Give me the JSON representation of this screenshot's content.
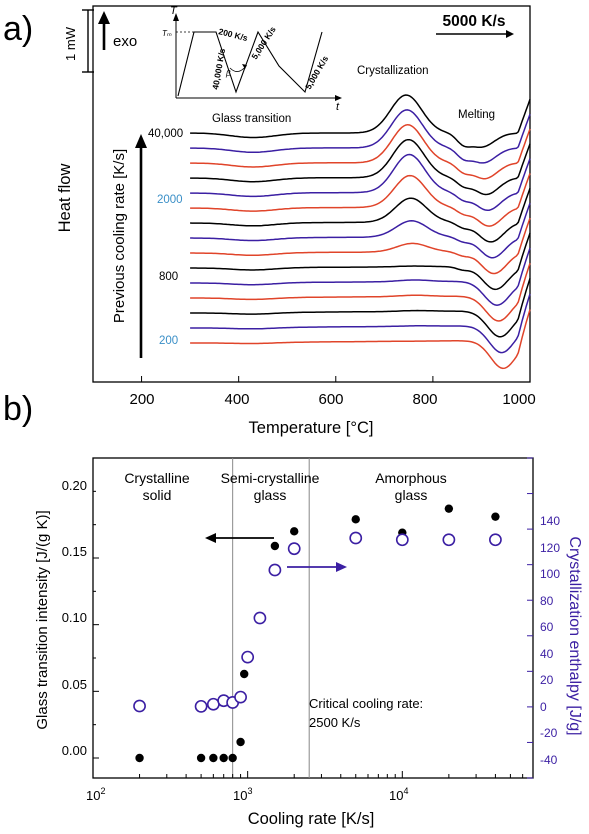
{
  "panel_a": {
    "label": "a)",
    "ylabel": "Heat flow",
    "xlabel": "Temperature [°C]",
    "xticks": [
      "200",
      "400",
      "600",
      "800",
      "1000"
    ],
    "scale_bar": "1 mW",
    "exo": "exo",
    "rate_label": "5000 K/s",
    "arrow_label": "Previous cooling rate [K/s]",
    "glass_transition": "Glass transition",
    "crystallization": "Crystallization",
    "melting": "Melting",
    "rate_labels": [
      {
        "text": "40,000",
        "color": "#000000"
      },
      {
        "text": "2000",
        "color": "#3a8fc7"
      },
      {
        "text": "800",
        "color": "#000000"
      },
      {
        "text": "200",
        "color": "#3a8fc7"
      }
    ],
    "inset": {
      "T": "T",
      "Tm": "Tₘ",
      "t": "t",
      "r1": "200 K/s",
      "r2": "40,000 K/s",
      "r3": "5,000 K/s",
      "r4": "5,000 K/s",
      "beta": "β"
    },
    "series_colors": [
      "#000000",
      "#3b1fa3",
      "#e0442a"
    ]
  },
  "panel_b": {
    "label": "b)",
    "regions": [
      "Crystalline",
      "solid",
      "Semi-crystalline",
      "glass",
      "Amorphous",
      "glass"
    ],
    "critical": [
      "Critical cooling rate:",
      "2500 K/s"
    ],
    "xlabel": "Cooling rate [K/s]",
    "ylabel_left": "Glass transition intensity [J/(g K)]",
    "ylabel_right": "Crystallization enthalpy [J/g]",
    "xtick_base": "10",
    "xtick_exps": [
      "2",
      "3",
      "4"
    ],
    "yticks_left": [
      "0.00",
      "0.05",
      "0.10",
      "0.15",
      "0.20"
    ],
    "yticks_right": [
      "-40",
      "-20",
      "0",
      "20",
      "40",
      "60",
      "80",
      "100",
      "120",
      "140"
    ]
  },
  "chart_data": [
    {
      "type": "line",
      "title": "",
      "xlabel": "Temperature [°C]",
      "ylabel": "Heat flow",
      "xlim": [
        100,
        1000
      ],
      "note": "Stacked DSC traces, offset vertically, for previous cooling rates from 200 to 40,000 K/s",
      "series_count": 15
    },
    {
      "type": "scatter",
      "xscale": "log",
      "xlabel": "Cooling rate [K/s]",
      "xlim": [
        100,
        70000
      ],
      "ylim_left": [
        -0.015,
        0.225
      ],
      "ylim_right": [
        -40,
        140
      ],
      "series": [
        {
          "name": "Glass transition intensity",
          "axis": "left",
          "marker": "filled",
          "color": "#000000",
          "x": [
            200,
            500,
            600,
            700,
            800,
            900,
            950,
            1200,
            1500,
            2000,
            5000,
            10000,
            20000,
            40000
          ],
          "y": [
            0.0,
            0.0,
            0.0,
            0.0,
            0.0,
            0.012,
            0.063,
            0.106,
            0.159,
            0.17,
            0.179,
            0.169,
            0.187,
            0.181
          ]
        },
        {
          "name": "Crystallization enthalpy",
          "axis": "right",
          "marker": "open",
          "color": "#3b1fa3",
          "x": [
            200,
            500,
            600,
            700,
            800,
            900,
            1000,
            1200,
            1500,
            2000,
            5000,
            10000,
            20000,
            40000
          ],
          "y": [
            0.5,
            0.3,
            1.5,
            3.5,
            2.5,
            5.5,
            28,
            50,
            77,
            89,
            95,
            94,
            94,
            94
          ]
        }
      ],
      "vlines": [
        800,
        2500
      ]
    }
  ]
}
